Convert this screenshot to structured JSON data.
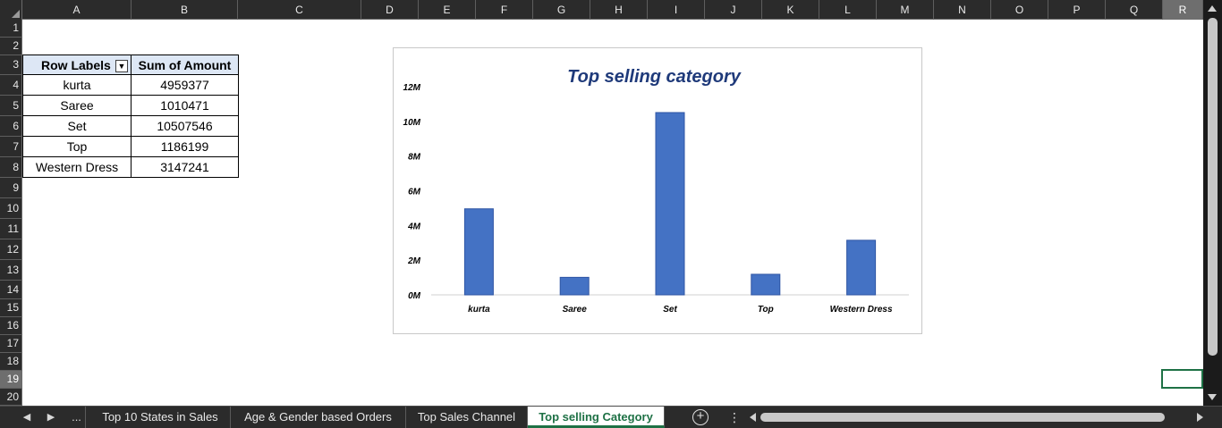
{
  "columns": [
    "A",
    "B",
    "C",
    "D",
    "E",
    "F",
    "G",
    "H",
    "I",
    "J",
    "K",
    "L",
    "M",
    "N",
    "O",
    "P",
    "Q",
    "R"
  ],
  "rows": [
    "1",
    "2",
    "3",
    "4",
    "5",
    "6",
    "7",
    "8",
    "9",
    "10",
    "11",
    "12",
    "13",
    "14",
    "15",
    "16",
    "17",
    "18",
    "19",
    "20"
  ],
  "pivot": {
    "header_label": "Row Labels",
    "header_value": "Sum of Amount",
    "filter_icon": "filter-dropdown-icon",
    "rows": [
      {
        "label": "kurta",
        "value": "4959377"
      },
      {
        "label": "Saree",
        "value": "1010471"
      },
      {
        "label": "Set",
        "value": "10507546"
      },
      {
        "label": "Top",
        "value": "1186199"
      },
      {
        "label": "Western Dress",
        "value": "3147241"
      }
    ]
  },
  "chart_data": {
    "type": "bar",
    "title": "Top selling category",
    "categories": [
      "kurta",
      "Saree",
      "Set",
      "Top",
      "Western Dress"
    ],
    "values": [
      4959377,
      1010471,
      10507546,
      1186199,
      3147241
    ],
    "yticks": [
      "0M",
      "2M",
      "4M",
      "6M",
      "8M",
      "10M",
      "12M"
    ],
    "ylim": [
      0,
      12000000
    ],
    "grid": false,
    "legend": "none",
    "bar_color": "#4472c4"
  },
  "tabs": {
    "nav_prev_icon": "tab-scroll-left-icon",
    "nav_next_icon": "tab-scroll-right-icon",
    "more": "...",
    "items": [
      {
        "label": "Top 10 States in Sales"
      },
      {
        "label": "Age & Gender based Orders"
      },
      {
        "label": "Top Sales Channel"
      },
      {
        "label": "Top selling Category"
      }
    ],
    "active_index": 3,
    "add_icon": "new-sheet-icon"
  },
  "colors": {
    "active_tab": "#1e7145",
    "pivot_header": "#dde7f5",
    "chart_title": "#1f3a7a"
  }
}
